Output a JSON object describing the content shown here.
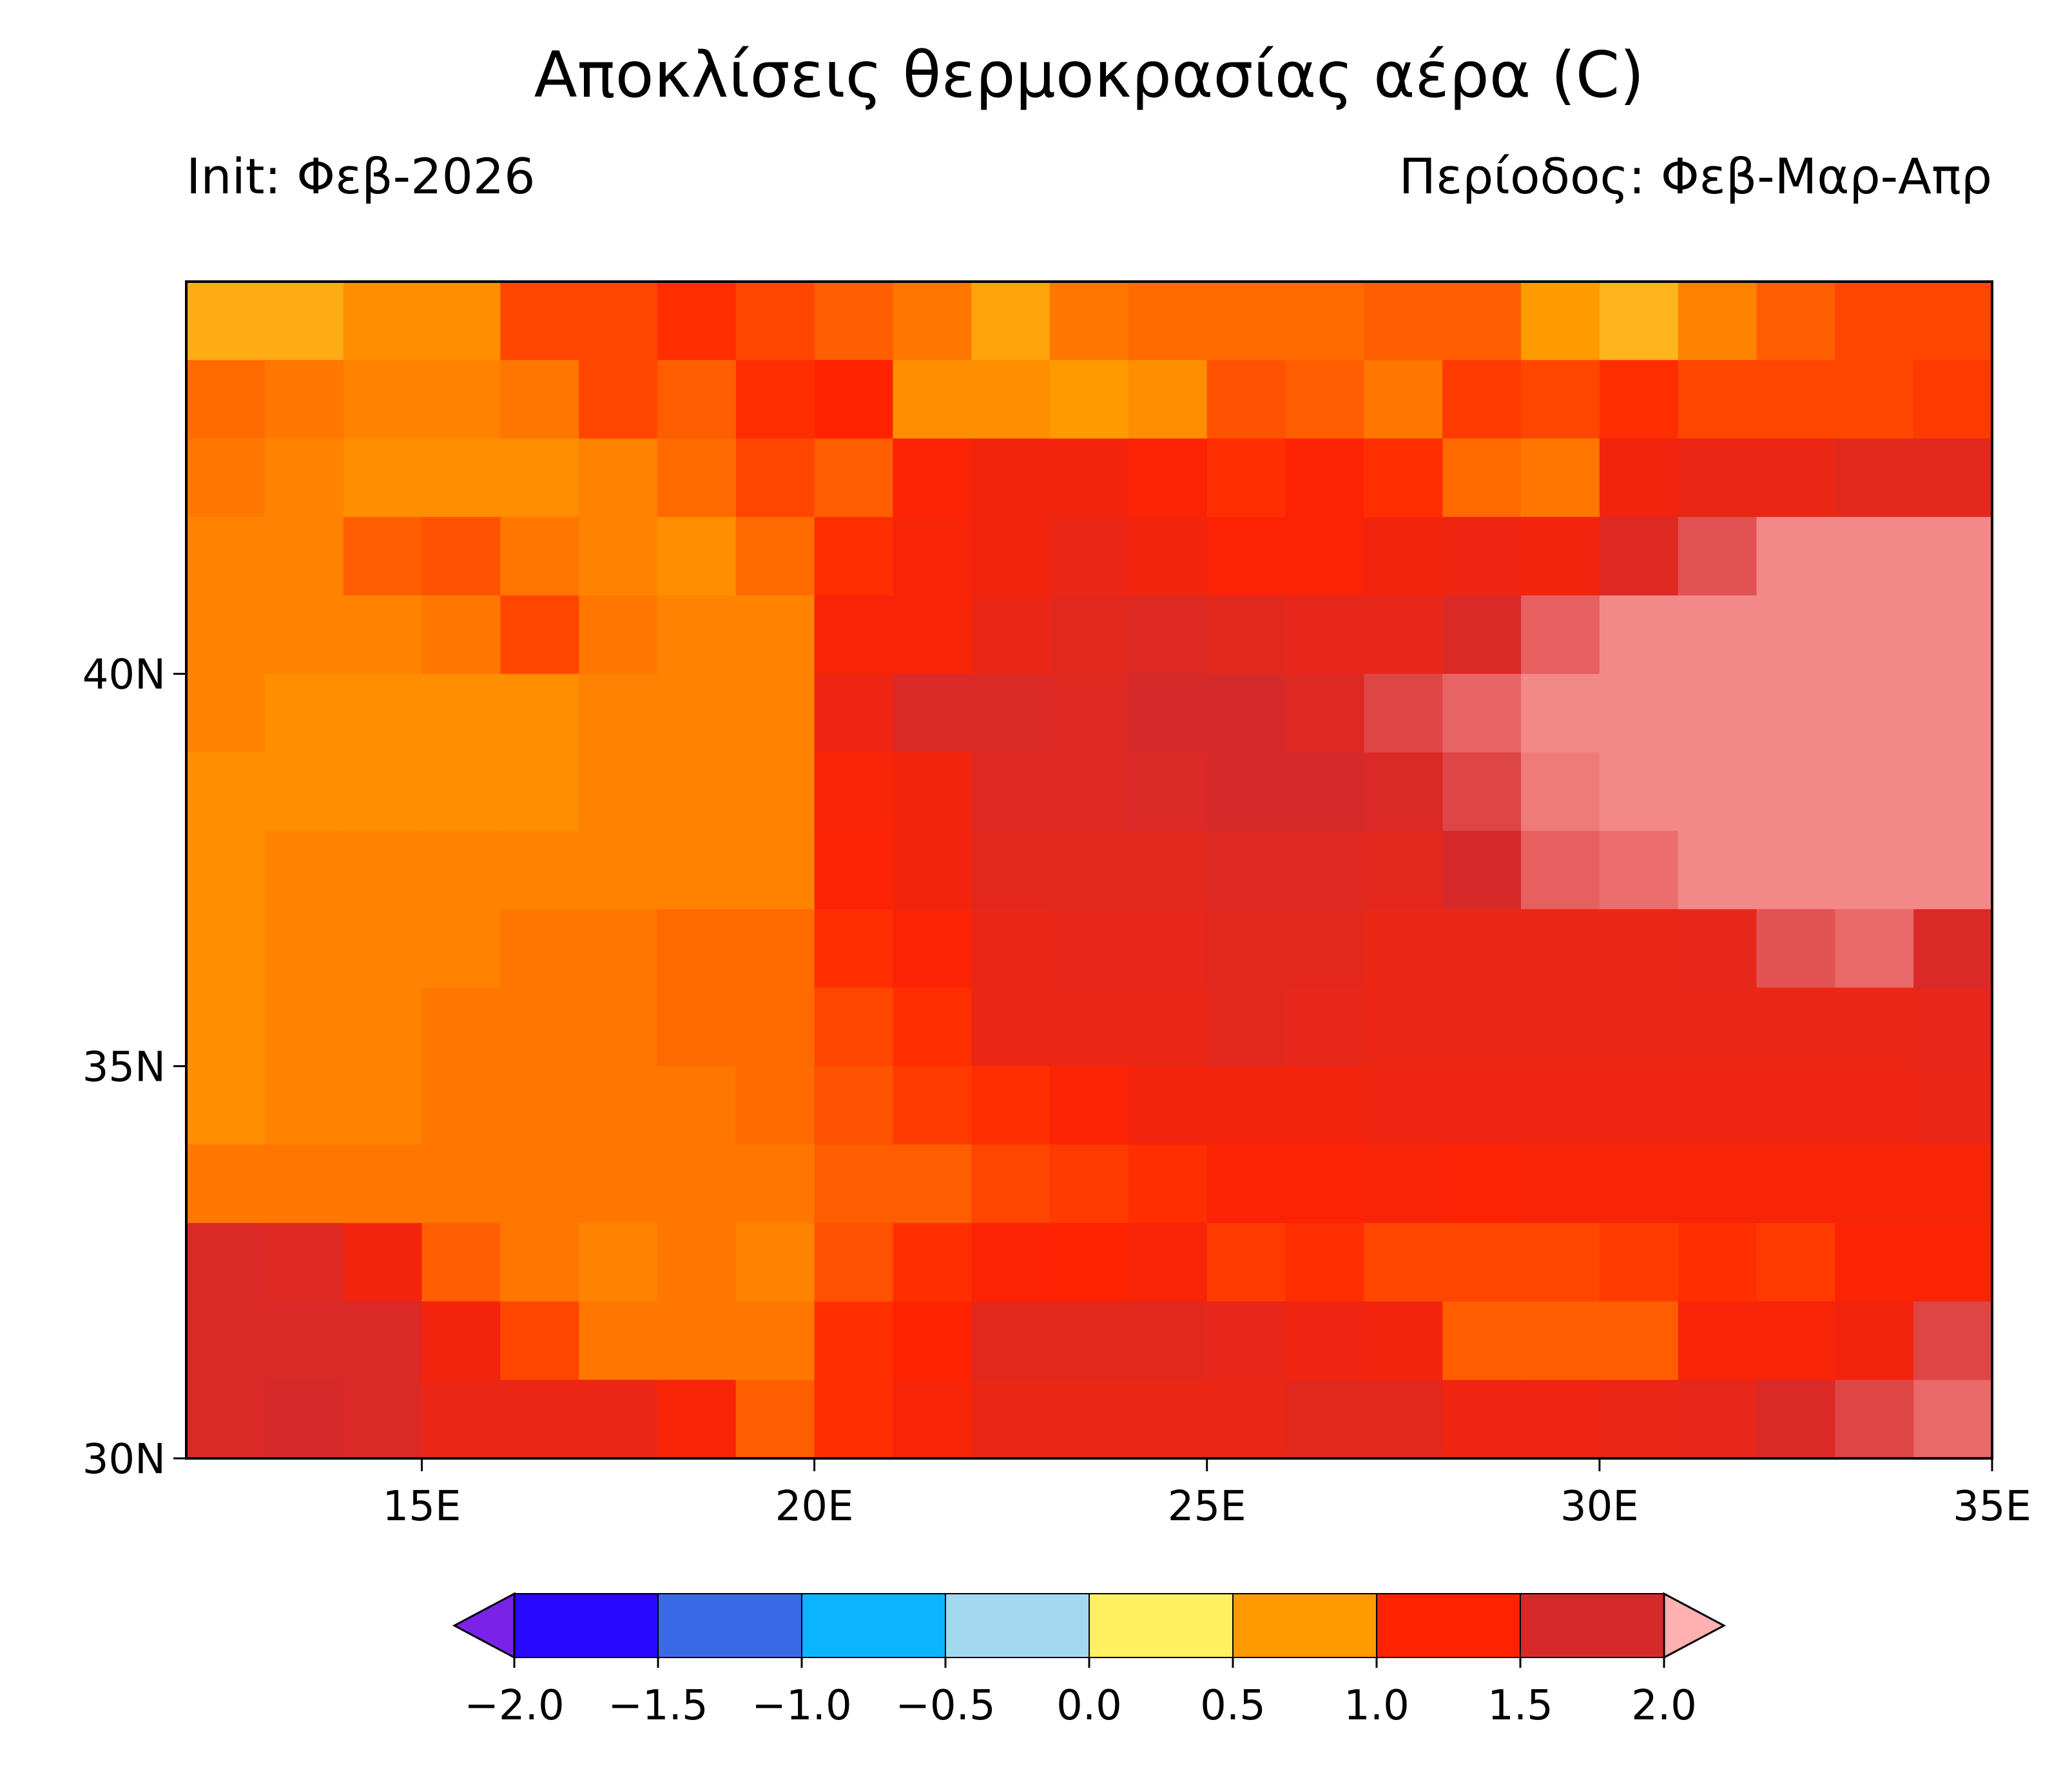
{
  "chart_data": {
    "type": "heatmap",
    "title": "Αποκλίσεις θερμοκρασίας  αέρα (C)",
    "subtitle_left": "Init: Φεβ-2026",
    "subtitle_right": "Περίοδος: Φεβ-Μαρ-Απρ",
    "xlim": [
      12,
      35
    ],
    "ylim": [
      30,
      45
    ],
    "xticks": [
      {
        "value": 15,
        "label": "15E"
      },
      {
        "value": 20,
        "label": "20E"
      },
      {
        "value": 25,
        "label": "25E"
      },
      {
        "value": 30,
        "label": "30E"
      },
      {
        "value": 35,
        "label": "35E"
      }
    ],
    "yticks": [
      {
        "value": 30,
        "label": "30N"
      },
      {
        "value": 35,
        "label": "35N"
      },
      {
        "value": 40,
        "label": "40N"
      }
    ],
    "values": [
      [
        0.65,
        0.65,
        0.8,
        0.8,
        1.1,
        1.1,
        1.2,
        1.1,
        1.0,
        0.9,
        0.7,
        0.9,
        0.95,
        0.95,
        0.95,
        1.0,
        1.0,
        0.75,
        0.6,
        0.85,
        1.0,
        1.1,
        1.1
      ],
      [
        0.95,
        0.9,
        0.85,
        0.85,
        0.9,
        1.1,
        1.0,
        1.2,
        1.25,
        0.8,
        0.8,
        0.75,
        0.8,
        1.05,
        1.0,
        0.9,
        1.15,
        1.1,
        1.2,
        1.1,
        1.1,
        1.1,
        1.15
      ],
      [
        0.9,
        0.85,
        0.8,
        0.8,
        0.8,
        0.85,
        0.95,
        1.1,
        1.0,
        1.3,
        1.4,
        1.4,
        1.3,
        1.2,
        1.3,
        1.2,
        0.95,
        0.9,
        1.4,
        1.5,
        1.5,
        1.6,
        1.6
      ],
      [
        0.85,
        0.85,
        1.0,
        1.05,
        0.9,
        0.85,
        0.8,
        0.95,
        1.2,
        1.35,
        1.4,
        1.5,
        1.4,
        1.3,
        1.3,
        1.4,
        1.45,
        1.4,
        1.65,
        1.9,
        2.1,
        2.1,
        2.1
      ],
      [
        0.85,
        0.85,
        0.85,
        0.9,
        1.1,
        0.9,
        0.85,
        0.85,
        1.35,
        1.35,
        1.5,
        1.6,
        1.65,
        1.6,
        1.55,
        1.55,
        1.7,
        1.95,
        2.1,
        2.1,
        2.1,
        2.1,
        2.1
      ],
      [
        0.85,
        0.8,
        0.8,
        0.8,
        0.8,
        0.85,
        0.85,
        0.85,
        1.45,
        1.7,
        1.7,
        1.65,
        1.75,
        1.75,
        1.65,
        1.85,
        1.97,
        2.1,
        2.1,
        2.1,
        2.1,
        2.1,
        2.1
      ],
      [
        0.8,
        0.8,
        0.8,
        0.8,
        0.8,
        0.85,
        0.85,
        0.85,
        1.35,
        1.4,
        1.65,
        1.65,
        1.7,
        1.75,
        1.75,
        1.7,
        1.85,
        2.05,
        2.1,
        2.1,
        2.1,
        2.1,
        2.1
      ],
      [
        0.8,
        0.85,
        0.85,
        0.85,
        0.85,
        0.85,
        0.85,
        0.85,
        1.3,
        1.4,
        1.6,
        1.6,
        1.6,
        1.65,
        1.65,
        1.6,
        1.75,
        1.95,
        2.0,
        2.1,
        2.1,
        2.1,
        2.1
      ],
      [
        0.8,
        0.85,
        0.85,
        0.85,
        0.9,
        0.9,
        0.95,
        0.95,
        1.2,
        1.3,
        1.5,
        1.55,
        1.55,
        1.6,
        1.6,
        1.5,
        1.5,
        1.5,
        1.5,
        1.55,
        1.9,
        1.98,
        1.7
      ],
      [
        0.8,
        0.85,
        0.85,
        0.9,
        0.9,
        0.9,
        0.95,
        0.95,
        1.1,
        1.2,
        1.5,
        1.5,
        1.5,
        1.6,
        1.55,
        1.5,
        1.5,
        1.5,
        1.5,
        1.5,
        1.5,
        1.5,
        1.55
      ],
      [
        0.8,
        0.85,
        0.85,
        0.9,
        0.9,
        0.9,
        0.9,
        0.95,
        1.05,
        1.15,
        1.2,
        1.3,
        1.4,
        1.4,
        1.4,
        1.45,
        1.45,
        1.45,
        1.45,
        1.45,
        1.45,
        1.45,
        1.5
      ],
      [
        0.9,
        0.9,
        0.9,
        0.9,
        0.9,
        0.9,
        0.9,
        0.9,
        1.0,
        1.0,
        1.1,
        1.15,
        1.2,
        1.3,
        1.3,
        1.35,
        1.3,
        1.35,
        1.35,
        1.35,
        1.35,
        1.35,
        1.35
      ],
      [
        1.7,
        1.65,
        1.4,
        1.0,
        0.9,
        0.85,
        0.9,
        0.85,
        1.05,
        1.2,
        1.3,
        1.25,
        1.35,
        1.15,
        1.2,
        1.1,
        1.1,
        1.1,
        1.15,
        1.2,
        1.15,
        1.3,
        1.3
      ],
      [
        1.7,
        1.7,
        1.7,
        1.4,
        1.1,
        0.9,
        0.9,
        0.9,
        1.2,
        1.25,
        1.6,
        1.6,
        1.6,
        1.55,
        1.45,
        1.4,
        1.0,
        1.0,
        1.0,
        1.35,
        1.35,
        1.4,
        1.85
      ],
      [
        1.7,
        1.75,
        1.7,
        1.5,
        1.5,
        1.5,
        1.35,
        1.0,
        1.2,
        1.35,
        1.5,
        1.5,
        1.5,
        1.5,
        1.6,
        1.6,
        1.45,
        1.45,
        1.5,
        1.55,
        1.7,
        1.85,
        1.98
      ]
    ],
    "colorbar": {
      "ticks": [
        {
          "value": -2,
          "label": "−2.0"
        },
        {
          "value": -1.5,
          "label": "−1.5"
        },
        {
          "value": -1,
          "label": "−1.0"
        },
        {
          "value": -0.5,
          "label": "−0.5"
        },
        {
          "value": 0,
          "label": "0.0"
        },
        {
          "value": 0.5,
          "label": "0.5"
        },
        {
          "value": 1,
          "label": "1.0"
        },
        {
          "value": 1.5,
          "label": "1.5"
        },
        {
          "value": 2,
          "label": "2.0"
        }
      ],
      "colors": [
        "#2a08ff",
        "#3a6ae8",
        "#0cb4ff",
        "#a2d8f0",
        "#fff060",
        "#ff9a00",
        "#ff2200",
        "#d62a2a"
      ],
      "under_color": "#7b22e8",
      "over_color": "#ffb0b0"
    }
  }
}
